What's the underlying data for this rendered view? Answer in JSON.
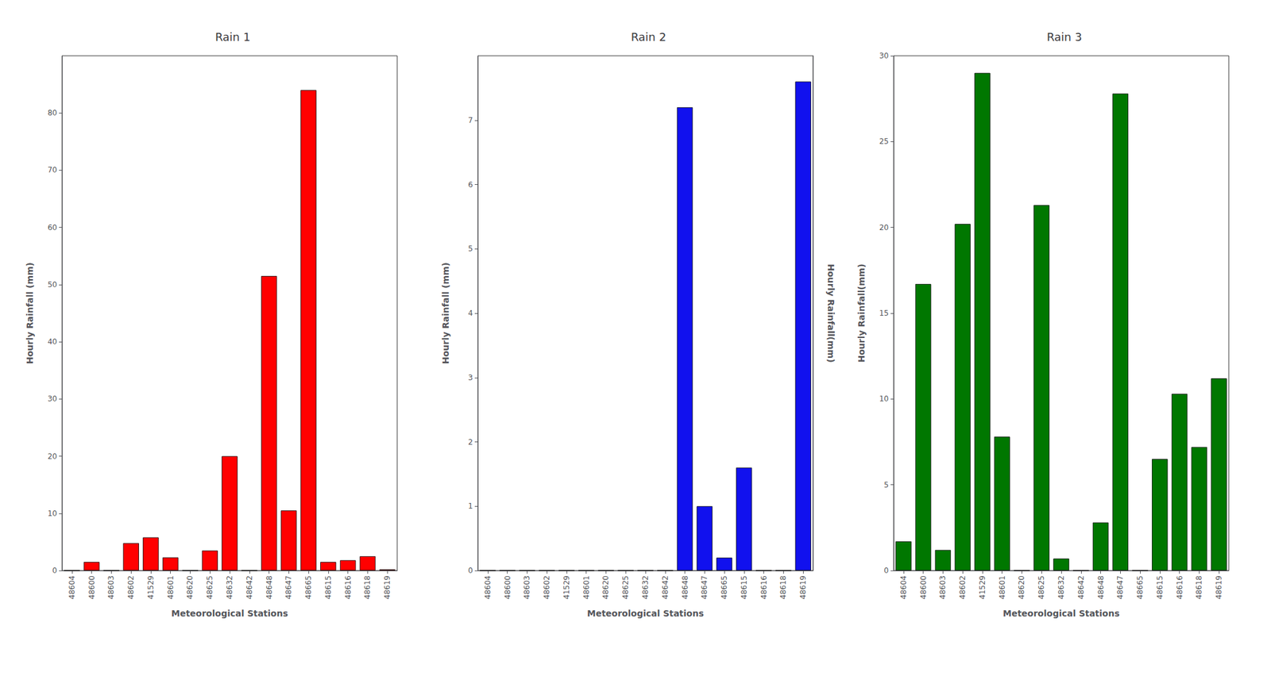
{
  "chart_data": [
    {
      "type": "bar",
      "title": "Rain 1",
      "xlabel": "Meteorological Stations",
      "ylabel": "Hourly Rainfall (mm)",
      "categories": [
        "48604",
        "48600",
        "48603",
        "48602",
        "41529",
        "48601",
        "48620",
        "48625",
        "48632",
        "48642",
        "48648",
        "48647",
        "48665",
        "48615",
        "48616",
        "48618",
        "48619"
      ],
      "values": [
        0,
        1.5,
        0,
        4.8,
        5.8,
        2.3,
        0,
        3.5,
        20.0,
        0,
        51.5,
        10.5,
        84.0,
        1.5,
        1.8,
        2.5,
        0.2
      ],
      "color": "#FF0000",
      "ylim": [
        0,
        90
      ],
      "yticks": [
        0,
        10,
        20,
        30,
        40,
        50,
        60,
        70,
        80
      ],
      "grid": false
    },
    {
      "type": "bar",
      "title": "Rain 2",
      "xlabel": "Meteorological Stations",
      "ylabel": "Hourly Rainfall (mm)",
      "y2label": "Hourly Rainfall(mm)",
      "categories": [
        "48604",
        "48600",
        "48603",
        "48602",
        "41529",
        "48601",
        "48620",
        "48625",
        "48632",
        "48642",
        "48648",
        "48647",
        "48665",
        "48615",
        "48616",
        "48618",
        "48619"
      ],
      "values": [
        0,
        0,
        0,
        0,
        0,
        0,
        0,
        0,
        0,
        0,
        7.2,
        1.0,
        0.2,
        1.6,
        0,
        0,
        7.6
      ],
      "color": "#1111EE",
      "ylim": [
        0,
        8
      ],
      "yticks": [
        0,
        1,
        2,
        3,
        4,
        5,
        6,
        7
      ],
      "grid": false
    },
    {
      "type": "bar",
      "title": "Rain 3",
      "xlabel": "Meteorological Stations",
      "ylabel": "Hourly Rainfall(mm)",
      "categories": [
        "48604",
        "48600",
        "48603",
        "48602",
        "41529",
        "48601",
        "48620",
        "48625",
        "48632",
        "48642",
        "48648",
        "48647",
        "48665",
        "48615",
        "48616",
        "48618",
        "48619"
      ],
      "values": [
        1.7,
        16.7,
        1.2,
        20.2,
        29.0,
        7.8,
        0,
        21.3,
        0.7,
        0,
        2.8,
        27.8,
        0,
        6.5,
        10.3,
        7.2,
        11.2
      ],
      "color": "#007700",
      "ylim": [
        0,
        30
      ],
      "yticks": [
        0,
        5,
        10,
        15,
        20,
        25,
        30
      ],
      "grid": false
    }
  ]
}
